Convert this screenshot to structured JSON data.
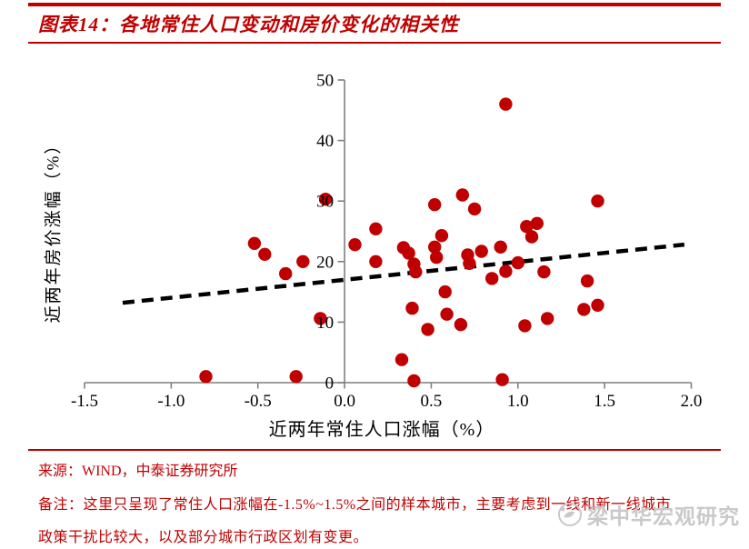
{
  "header": {
    "title": "图表14：各地常住人口变动和房价变化的相关性"
  },
  "chart_data": {
    "type": "scatter",
    "title": "图表14：各地常住人口变动和房价变化的相关性",
    "xlabel": "近两年常住人口涨幅（%）",
    "ylabel": "近两年房价涨幅（%）",
    "xlim": [
      -1.5,
      2.0
    ],
    "ylim": [
      0,
      50
    ],
    "x_ticks": [
      -1.5,
      -1.0,
      -0.5,
      0.0,
      0.5,
      1.0,
      1.5,
      2.0
    ],
    "x_tick_labels": [
      "-1.5",
      "-1.0",
      "-0.5",
      "0.0",
      "0.5",
      "1.0",
      "1.5",
      "2.0"
    ],
    "y_ticks": [
      0,
      10,
      20,
      30,
      40,
      50
    ],
    "y_tick_labels": [
      "0",
      "10",
      "20",
      "30",
      "40",
      "50"
    ],
    "grid": false,
    "legend": "none",
    "marker": {
      "shape": "circle",
      "color": "#C00000",
      "radius_px": 7.2
    },
    "axis_color": "#7F7F7F",
    "points": [
      [
        -0.8,
        1.0
      ],
      [
        -0.52,
        23.0
      ],
      [
        -0.46,
        21.2
      ],
      [
        -0.34,
        18.0
      ],
      [
        -0.28,
        1.0
      ],
      [
        -0.24,
        20.0
      ],
      [
        -0.14,
        10.6
      ],
      [
        -0.11,
        30.3
      ],
      [
        0.06,
        22.8
      ],
      [
        0.18,
        25.4
      ],
      [
        0.18,
        20.0
      ],
      [
        0.33,
        3.8
      ],
      [
        0.34,
        22.3
      ],
      [
        0.37,
        21.4
      ],
      [
        0.39,
        12.3
      ],
      [
        0.4,
        19.6
      ],
      [
        0.41,
        18.3
      ],
      [
        0.4,
        0.3
      ],
      [
        0.48,
        8.8
      ],
      [
        0.52,
        29.4
      ],
      [
        0.52,
        22.4
      ],
      [
        0.53,
        20.7
      ],
      [
        0.56,
        24.3
      ],
      [
        0.58,
        15.0
      ],
      [
        0.59,
        11.3
      ],
      [
        0.67,
        9.6
      ],
      [
        0.68,
        31.0
      ],
      [
        0.71,
        21.1
      ],
      [
        0.72,
        19.7
      ],
      [
        0.75,
        28.7
      ],
      [
        0.79,
        21.7
      ],
      [
        0.85,
        17.2
      ],
      [
        0.9,
        22.4
      ],
      [
        0.91,
        0.5
      ],
      [
        0.93,
        18.4
      ],
      [
        0.93,
        46.0
      ],
      [
        1.0,
        19.8
      ],
      [
        1.04,
        9.4
      ],
      [
        1.05,
        25.8
      ],
      [
        1.08,
        24.1
      ],
      [
        1.11,
        26.3
      ],
      [
        1.15,
        18.3
      ],
      [
        1.17,
        10.6
      ],
      [
        1.38,
        12.1
      ],
      [
        1.4,
        16.8
      ],
      [
        1.46,
        12.8
      ],
      [
        1.46,
        30.0
      ]
    ],
    "trend_line": {
      "style": "dashed",
      "color": "#000000",
      "x_start": -1.28,
      "y_start": 13.2,
      "x_end": 1.96,
      "y_end": 22.8
    }
  },
  "footer": {
    "source": "来源：WIND，中泰证券研究所",
    "note_line1": "备注：这里只呈现了常住人口涨幅在-1.5%~1.5%之间的样本城市，主要考虑到一线和新一线城市",
    "note_line2": "政策干扰比较大，以及部分城市行政区划有变更。",
    "watermark": "梁中华宏观研究"
  },
  "colors": {
    "accent_red": "#C00000",
    "axis_gray": "#7F7F7F",
    "watermark_gray": "#c9c9c9",
    "trend_black": "#000000"
  }
}
